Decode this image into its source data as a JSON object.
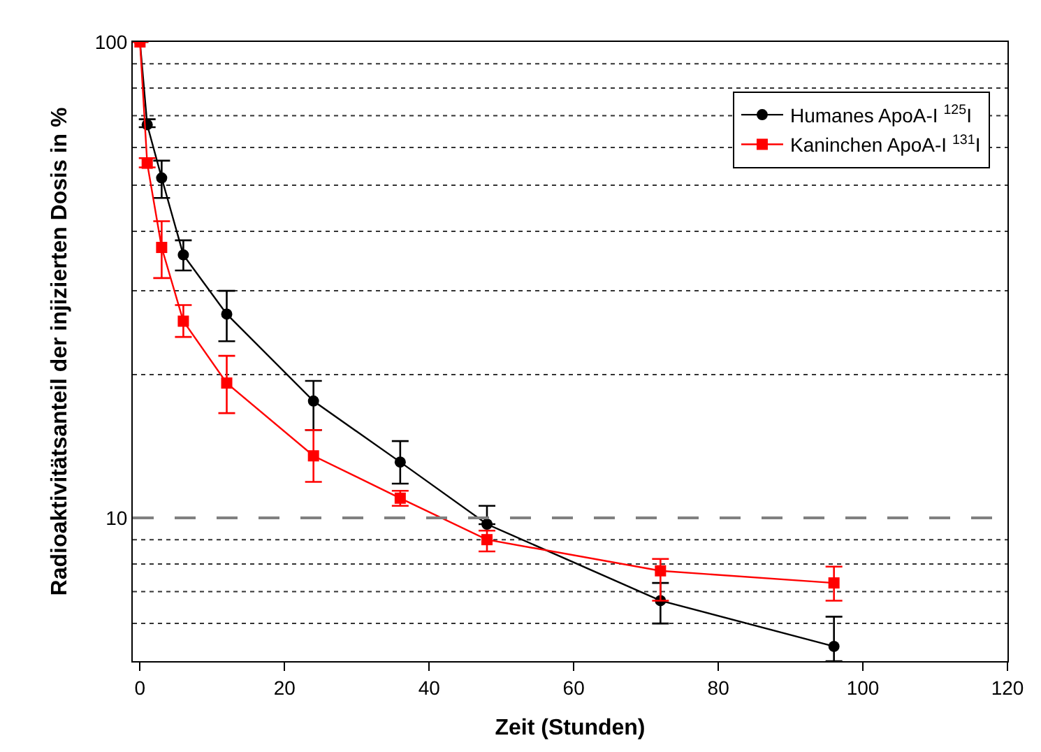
{
  "chart_data": {
    "type": "line",
    "xlabel": "Zeit (Stunden)",
    "ylabel": "Radioaktivitätsanteil der injizierten Dosis in %",
    "x": [
      0,
      1,
      3,
      6,
      12,
      24,
      36,
      48,
      72,
      96
    ],
    "series": [
      {
        "name": "Humanes ApoA-I $^{125}$I",
        "color": "#000000",
        "marker": "circle",
        "values": [
          100,
          67,
          51.8,
          35.7,
          26.8,
          17.6,
          13.1,
          9.7,
          6.7,
          5.37
        ],
        "errors": [
          null,
          [
            66.2,
            68.8
          ],
          [
            47,
            56.3
          ],
          [
            33.1,
            38.3
          ],
          [
            23.5,
            30
          ],
          [
            15.3,
            19.4
          ],
          [
            11.8,
            14.5
          ],
          [
            9.7,
            10.6
          ],
          [
            6,
            7.3
          ],
          [
            5,
            6.2
          ]
        ]
      },
      {
        "name": "Kaninchen ApoA-I $^{131}$I",
        "color": "#ff0000",
        "marker": "square",
        "values": [
          100,
          55.6,
          37,
          25.9,
          19.2,
          13.5,
          11,
          9,
          7.74,
          7.3
        ],
        "errors": [
          null,
          [
            54.5,
            57
          ],
          [
            31.9,
            42
          ],
          [
            24,
            28
          ],
          [
            16.6,
            21.9
          ],
          [
            11.9,
            15.3
          ],
          [
            10.6,
            11.4
          ],
          [
            8.5,
            9.4
          ],
          [
            6.7,
            8.2
          ],
          [
            6.7,
            7.9
          ]
        ]
      }
    ],
    "log": true,
    "xlim": [
      -1,
      120
    ],
    "xticks": [
      0,
      20,
      40,
      60,
      80,
      100,
      120
    ],
    "ylim": [
      5,
      100
    ],
    "yticks": [
      {
        "value": 6,
        "label": null
      },
      {
        "value": 7,
        "label": null
      },
      {
        "value": 8,
        "label": null
      },
      {
        "value": 9,
        "label": null
      },
      10,
      {
        "value": 20,
        "label": null
      },
      {
        "value": 30,
        "label": null
      },
      {
        "value": 40,
        "label": null
      },
      {
        "value": 50,
        "label": null
      },
      {
        "value": 60,
        "label": null
      },
      {
        "value": 70,
        "label": null
      },
      {
        "value": 80,
        "label": null
      },
      {
        "value": 90,
        "label": null
      },
      100
    ],
    "grid": "y",
    "ref_lines": [
      {
        "axis": "y",
        "value": 10,
        "color": "#808080",
        "line_style": "dashed"
      }
    ],
    "legend": "top right",
    "line_style": "solid"
  }
}
